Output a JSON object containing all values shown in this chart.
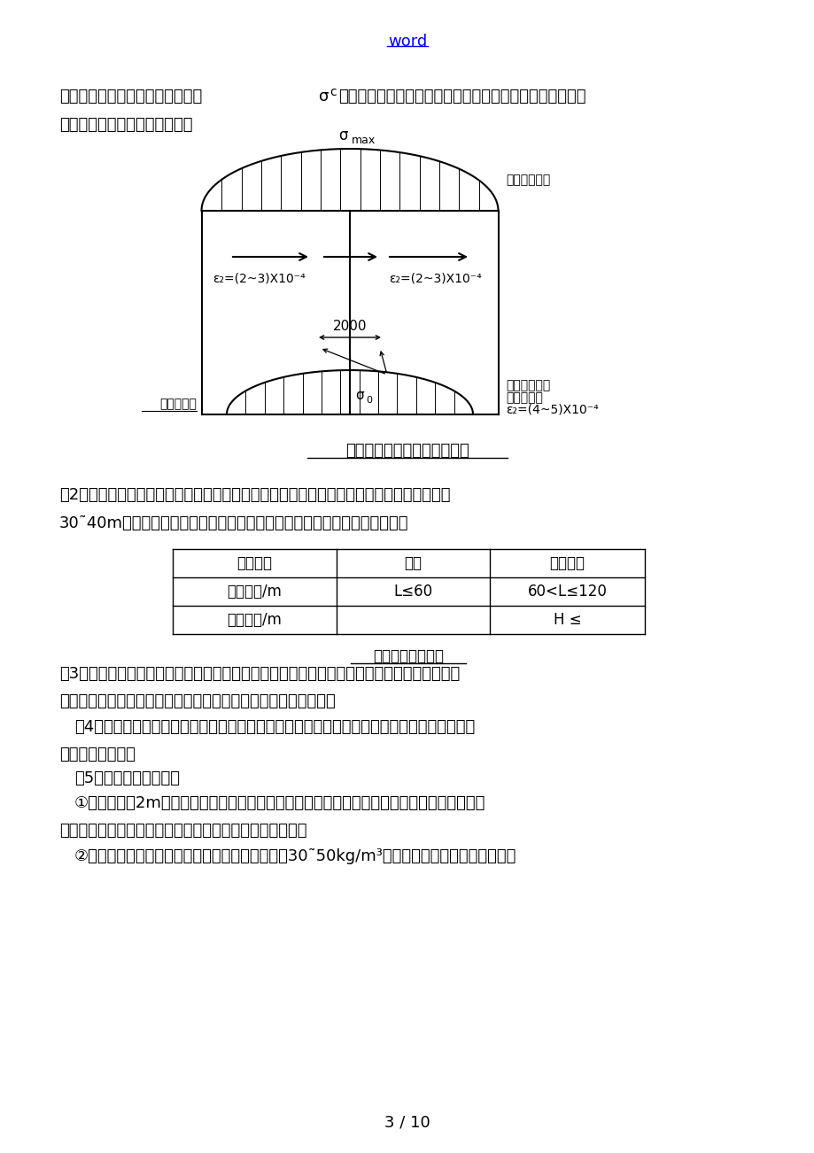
{
  "page_title": "word",
  "bg_color": "#ffffff",
  "link_color": "#0000FF",
  "diagram_caption": "连续式膨胀加强带设计原理图",
  "table_caption": "连续浇筑结构长度",
  "table_headers": [
    "结构类别",
    "墙体",
    "板式结构"
  ],
  "table_row1_col0": "结构长度/m",
  "table_row1_col1": "L≤60",
  "table_row1_col2": "60<L≤120",
  "table_row2_col0": "结构厚度/m",
  "table_row2_col1": "",
  "table_row2_col2": "H ≤",
  "page_num": "3 / 10"
}
